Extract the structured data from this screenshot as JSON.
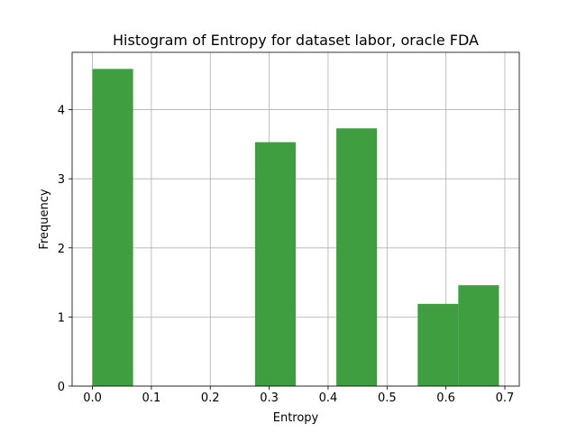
{
  "chart_data": {
    "type": "bar",
    "title": "Histogram of Entropy for dataset labor, oracle FDA",
    "xlabel": "Entropy",
    "ylabel": "Frequency",
    "xlim": [
      -0.0345,
      0.7245
    ],
    "ylim": [
      0,
      4.83
    ],
    "xticks": [
      0.0,
      0.1,
      0.2,
      0.3,
      0.4,
      0.5,
      0.6,
      0.7
    ],
    "xtick_labels": [
      "0.0",
      "0.1",
      "0.2",
      "0.3",
      "0.4",
      "0.5",
      "0.6",
      "0.7"
    ],
    "yticks": [
      0,
      1,
      2,
      3,
      4
    ],
    "ytick_labels": [
      "0",
      "1",
      "2",
      "3",
      "4"
    ],
    "grid": true,
    "bar_color": "#3f9e40",
    "bins": [
      {
        "x0": 0.0,
        "x1": 0.069,
        "value": 4.59
      },
      {
        "x0": 0.069,
        "x1": 0.138,
        "value": 0
      },
      {
        "x0": 0.138,
        "x1": 0.207,
        "value": 0
      },
      {
        "x0": 0.207,
        "x1": 0.276,
        "value": 0
      },
      {
        "x0": 0.276,
        "x1": 0.345,
        "value": 3.53
      },
      {
        "x0": 0.345,
        "x1": 0.414,
        "value": 0
      },
      {
        "x0": 0.414,
        "x1": 0.483,
        "value": 3.73
      },
      {
        "x0": 0.483,
        "x1": 0.552,
        "value": 0
      },
      {
        "x0": 0.552,
        "x1": 0.621,
        "value": 1.19
      },
      {
        "x0": 0.621,
        "x1": 0.69,
        "value": 1.46
      }
    ]
  }
}
